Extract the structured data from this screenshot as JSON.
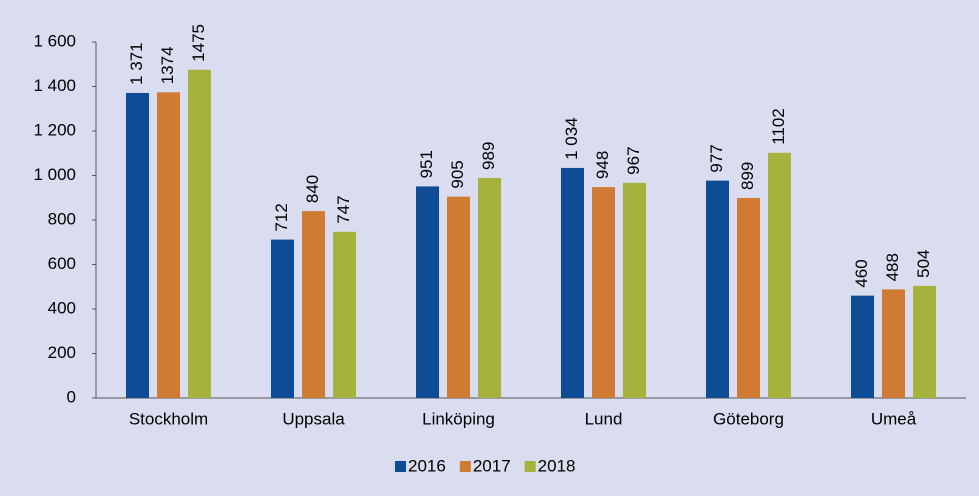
{
  "chart_data": {
    "type": "bar",
    "categories": [
      "Stockholm",
      "Uppsala",
      "Linköping",
      "Lund",
      "Göteborg",
      "Umeå"
    ],
    "series": [
      {
        "name": "2016",
        "color": "#0e4c96",
        "values": [
          1371,
          712,
          951,
          1034,
          977,
          460
        ],
        "value_labels": [
          "1 371",
          "712",
          "951",
          "1 034",
          "977",
          "460"
        ]
      },
      {
        "name": "2017",
        "color": "#d07b33",
        "values": [
          1374,
          840,
          905,
          948,
          899,
          488
        ],
        "value_labels": [
          "1374",
          "840",
          "905",
          "948",
          "899",
          "488"
        ]
      },
      {
        "name": "2018",
        "color": "#a5b23b",
        "values": [
          1475,
          747,
          989,
          967,
          1102,
          504
        ],
        "value_labels": [
          "1475",
          "747",
          "989",
          "967",
          "1102",
          "504"
        ]
      }
    ],
    "ylim": [
      0,
      1600
    ],
    "yticks": [
      0,
      200,
      400,
      600,
      800,
      {
        "value": 1000,
        "label": "1 000"
      },
      {
        "value": 1200,
        "label": "1 200"
      },
      {
        "value": 1400,
        "label": "1 400"
      },
      {
        "value": 1600,
        "label": "1 600"
      }
    ],
    "grid": false,
    "legend": "bottom"
  }
}
